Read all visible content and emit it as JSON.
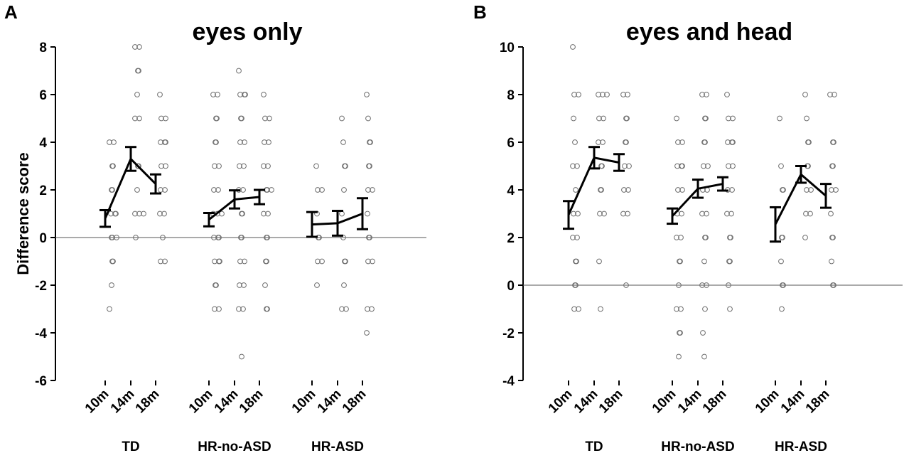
{
  "chart_data": [
    {
      "panel_label": "A",
      "type": "scatter",
      "title": "eyes only",
      "ylabel": "Difference score",
      "ylim": [
        -6,
        8
      ],
      "yticks": [
        -6,
        -4,
        -2,
        0,
        2,
        4,
        6,
        8
      ],
      "reference_line_y": 0,
      "groups": [
        {
          "name": "TD",
          "ages": [
            "10m",
            "14m",
            "18m"
          ],
          "means": [
            0.8,
            3.3,
            2.25
          ],
          "errors": [
            0.35,
            0.5,
            0.4
          ],
          "points": [
            [
              4,
              4,
              3,
              3,
              2,
              2,
              1,
              1,
              1,
              0,
              0,
              0,
              -1,
              -1,
              -2,
              -3
            ],
            [
              8,
              8,
              7,
              7,
              6,
              5,
              5,
              3,
              3,
              2,
              1,
              1,
              1,
              0
            ],
            [
              6,
              5,
              5,
              4,
              4,
              4,
              3,
              3,
              2,
              2,
              1,
              1,
              0,
              -1,
              -1
            ]
          ]
        },
        {
          "name": "HR-no-ASD",
          "ages": [
            "10m",
            "14m",
            "18m"
          ],
          "means": [
            0.75,
            1.6,
            1.7
          ],
          "errors": [
            0.28,
            0.38,
            0.3
          ],
          "points": [
            [
              6,
              6,
              5,
              5,
              4,
              4,
              3,
              3,
              2,
              2,
              1,
              1,
              1,
              0,
              0,
              0,
              -1,
              -1,
              -1,
              -2,
              -2,
              -3,
              -3
            ],
            [
              7,
              6,
              6,
              6,
              5,
              5,
              4,
              4,
              3,
              3,
              2,
              2,
              1,
              1,
              0,
              0,
              -1,
              -1,
              -2,
              -2,
              -3,
              -3,
              -5
            ],
            [
              6,
              5,
              5,
              4,
              4,
              3,
              3,
              2,
              2,
              2,
              1,
              1,
              0,
              0,
              -1,
              -1,
              -2,
              -3,
              -3
            ]
          ]
        },
        {
          "name": "HR-ASD",
          "ages": [
            "10m",
            "14m",
            "18m"
          ],
          "means": [
            0.55,
            0.6,
            1.0
          ],
          "errors": [
            0.52,
            0.52,
            0.65
          ],
          "points": [
            [
              3,
              2,
              2,
              1,
              0,
              0,
              -1,
              -1,
              -2
            ],
            [
              5,
              4,
              3,
              3,
              2,
              1,
              0,
              -1,
              -1,
              -2,
              -3,
              -3
            ],
            [
              6,
              5,
              4,
              4,
              3,
              3,
              2,
              2,
              1,
              0,
              0,
              -1,
              -1,
              -3,
              -3,
              -4
            ]
          ]
        }
      ]
    },
    {
      "panel_label": "B",
      "type": "scatter",
      "title": "eyes and head",
      "ylabel": "",
      "ylim": [
        -4,
        10
      ],
      "yticks": [
        -4,
        -2,
        0,
        2,
        4,
        6,
        8,
        10
      ],
      "reference_line_y": 0,
      "groups": [
        {
          "name": "TD",
          "ages": [
            "10m",
            "14m",
            "18m"
          ],
          "means": [
            2.95,
            5.35,
            5.15
          ],
          "errors": [
            0.58,
            0.45,
            0.35
          ],
          "points": [
            [
              10,
              8,
              8,
              7,
              6,
              5,
              5,
              4,
              3,
              3,
              2,
              2,
              1,
              1,
              0,
              0,
              -1,
              -1
            ],
            [
              8,
              8,
              8,
              7,
              7,
              6,
              6,
              5,
              5,
              4,
              4,
              3,
              3,
              1,
              -1
            ],
            [
              8,
              8,
              7,
              7,
              6,
              6,
              5,
              5,
              4,
              4,
              3,
              3,
              0
            ]
          ]
        },
        {
          "name": "HR-no-ASD",
          "ages": [
            "10m",
            "14m",
            "18m"
          ],
          "means": [
            2.9,
            4.05,
            4.25
          ],
          "errors": [
            0.32,
            0.38,
            0.28
          ],
          "points": [
            [
              7,
              6,
              6,
              5,
              5,
              5,
              4,
              4,
              3,
              3,
              2,
              2,
              1,
              1,
              0,
              -1,
              -1,
              -2,
              -2,
              -3
            ],
            [
              8,
              8,
              7,
              7,
              6,
              6,
              5,
              5,
              4,
              4,
              3,
              3,
              2,
              2,
              1,
              0,
              0,
              -1,
              -2,
              -3
            ],
            [
              8,
              7,
              7,
              6,
              6,
              6,
              5,
              5,
              4,
              4,
              3,
              3,
              2,
              2,
              1,
              1,
              0,
              -1
            ]
          ]
        },
        {
          "name": "HR-ASD",
          "ages": [
            "10m",
            "14m",
            "18m"
          ],
          "means": [
            2.55,
            4.65,
            3.75
          ],
          "errors": [
            0.72,
            0.35,
            0.5
          ],
          "points": [
            [
              7,
              5,
              4,
              4,
              2,
              2,
              1,
              0,
              0,
              -1
            ],
            [
              8,
              7,
              6,
              6,
              5,
              5,
              4,
              4,
              3,
              3,
              2
            ],
            [
              8,
              8,
              6,
              6,
              5,
              5,
              4,
              4,
              3,
              2,
              2,
              1,
              0,
              0
            ]
          ]
        }
      ]
    }
  ]
}
